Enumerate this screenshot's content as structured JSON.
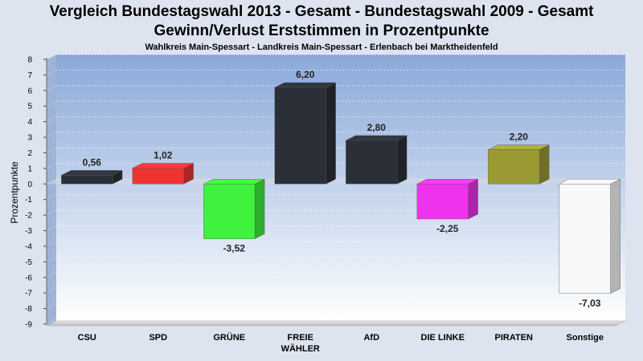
{
  "chart_data": {
    "type": "bar",
    "title": "Vergleich Bundestagswahl 2013 - Gesamt - Bundestagswahl 2009 - Gesamt",
    "title2": "Gewinn/Verlust Erststimmen in Prozentpunkte",
    "subtitle": "Wahlkreis Main-Spessart - Landkreis Main-Spessart - Erlenbach bei Marktheidenfeld",
    "ylabel": "Prozentpunkte",
    "xlabel": "",
    "ylim": [
      -9,
      8
    ],
    "yticks": [
      8,
      7,
      6,
      5,
      4,
      3,
      2,
      1,
      0,
      -1,
      -2,
      -3,
      -4,
      -5,
      -6,
      -7,
      -8,
      -9
    ],
    "grid": true,
    "categories": [
      "CSU",
      "SPD",
      "GRÜNE",
      "FREIE WÄHLER",
      "AfD",
      "DIE LINKE",
      "PIRATEN",
      "Sonstige"
    ],
    "category_lines": [
      [
        "CSU"
      ],
      [
        "SPD"
      ],
      [
        "GRÜNE"
      ],
      [
        "FREIE",
        "WÄHLER"
      ],
      [
        "AfD"
      ],
      [
        "DIE LINKE"
      ],
      [
        "PIRATEN"
      ],
      [
        "Sonstige"
      ]
    ],
    "values": [
      0.56,
      1.02,
      -3.52,
      6.2,
      2.8,
      -2.25,
      2.2,
      -7.03
    ],
    "value_labels": [
      "0,56",
      "1,02",
      "-3,52",
      "6,20",
      "2,80",
      "-2,25",
      "2,20",
      "-7,03"
    ],
    "colors": [
      "#2b2f38",
      "#ee3333",
      "#3ef23e",
      "#2b2f38",
      "#2b2f38",
      "#ee33ee",
      "#9a9a33",
      "#f8f8f8"
    ]
  }
}
